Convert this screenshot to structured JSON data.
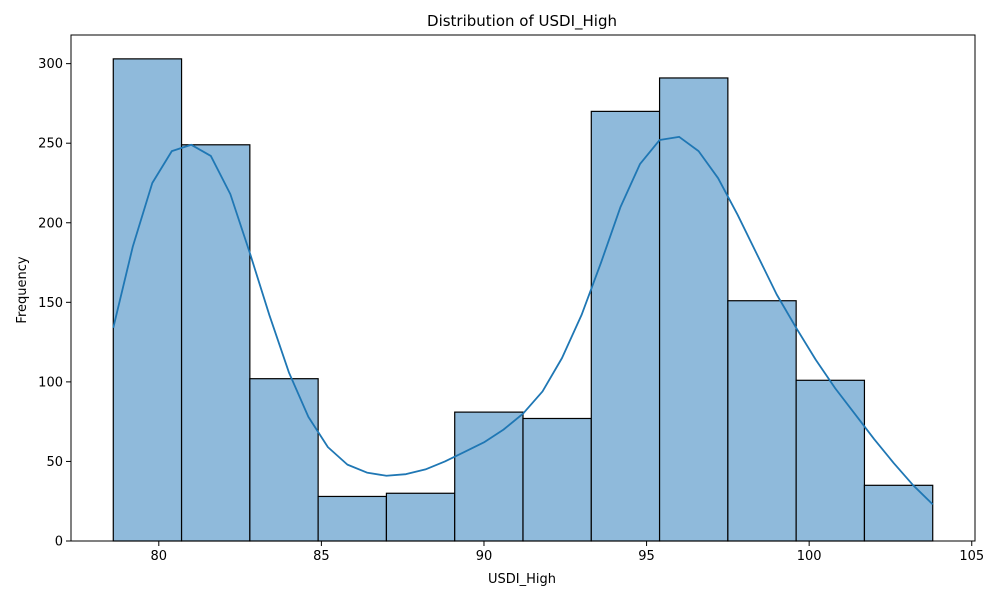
{
  "chart_data": {
    "type": "bar",
    "subtype": "histogram",
    "title": "Distribution of USDI_High",
    "xlabel": "USDI_High",
    "ylabel": "Frequency",
    "xlim": [
      77.3,
      105.1
    ],
    "ylim": [
      0,
      318
    ],
    "xticks": [
      80,
      85,
      90,
      95,
      100,
      105
    ],
    "yticks": [
      0,
      50,
      100,
      150,
      200,
      250,
      300
    ],
    "bin_edges": [
      78.6,
      80.7,
      82.8,
      84.9,
      87.0,
      89.1,
      91.2,
      93.3,
      95.4,
      97.5,
      99.6,
      101.7,
      103.8
    ],
    "values": [
      303,
      249,
      102,
      28,
      30,
      81,
      77,
      270,
      291,
      151,
      101,
      35
    ],
    "kde": {
      "x": [
        78.6,
        79.2,
        79.8,
        80.4,
        81.0,
        81.6,
        82.2,
        82.8,
        83.4,
        84.0,
        84.6,
        85.2,
        85.8,
        86.4,
        87.0,
        87.6,
        88.2,
        88.8,
        89.4,
        90.0,
        90.6,
        91.2,
        91.8,
        92.4,
        93.0,
        93.6,
        94.2,
        94.8,
        95.4,
        96.0,
        96.6,
        97.2,
        97.8,
        98.4,
        99.0,
        99.6,
        100.2,
        100.8,
        101.4,
        102.0,
        102.6,
        103.2,
        103.8
      ],
      "y": [
        134,
        185,
        225,
        245,
        249,
        242,
        218,
        181,
        142,
        106,
        78,
        59,
        48,
        43,
        41,
        42,
        45,
        50,
        56,
        62,
        70,
        80,
        94,
        115,
        142,
        175,
        210,
        237,
        252,
        254,
        245,
        228,
        205,
        180,
        155,
        134,
        114,
        96,
        80,
        64,
        49,
        35,
        23
      ]
    },
    "bar_color": "#8fbadb",
    "bar_edge_color": "#000000",
    "line_color": "#1f77b4",
    "grid": false,
    "legend": "none"
  }
}
